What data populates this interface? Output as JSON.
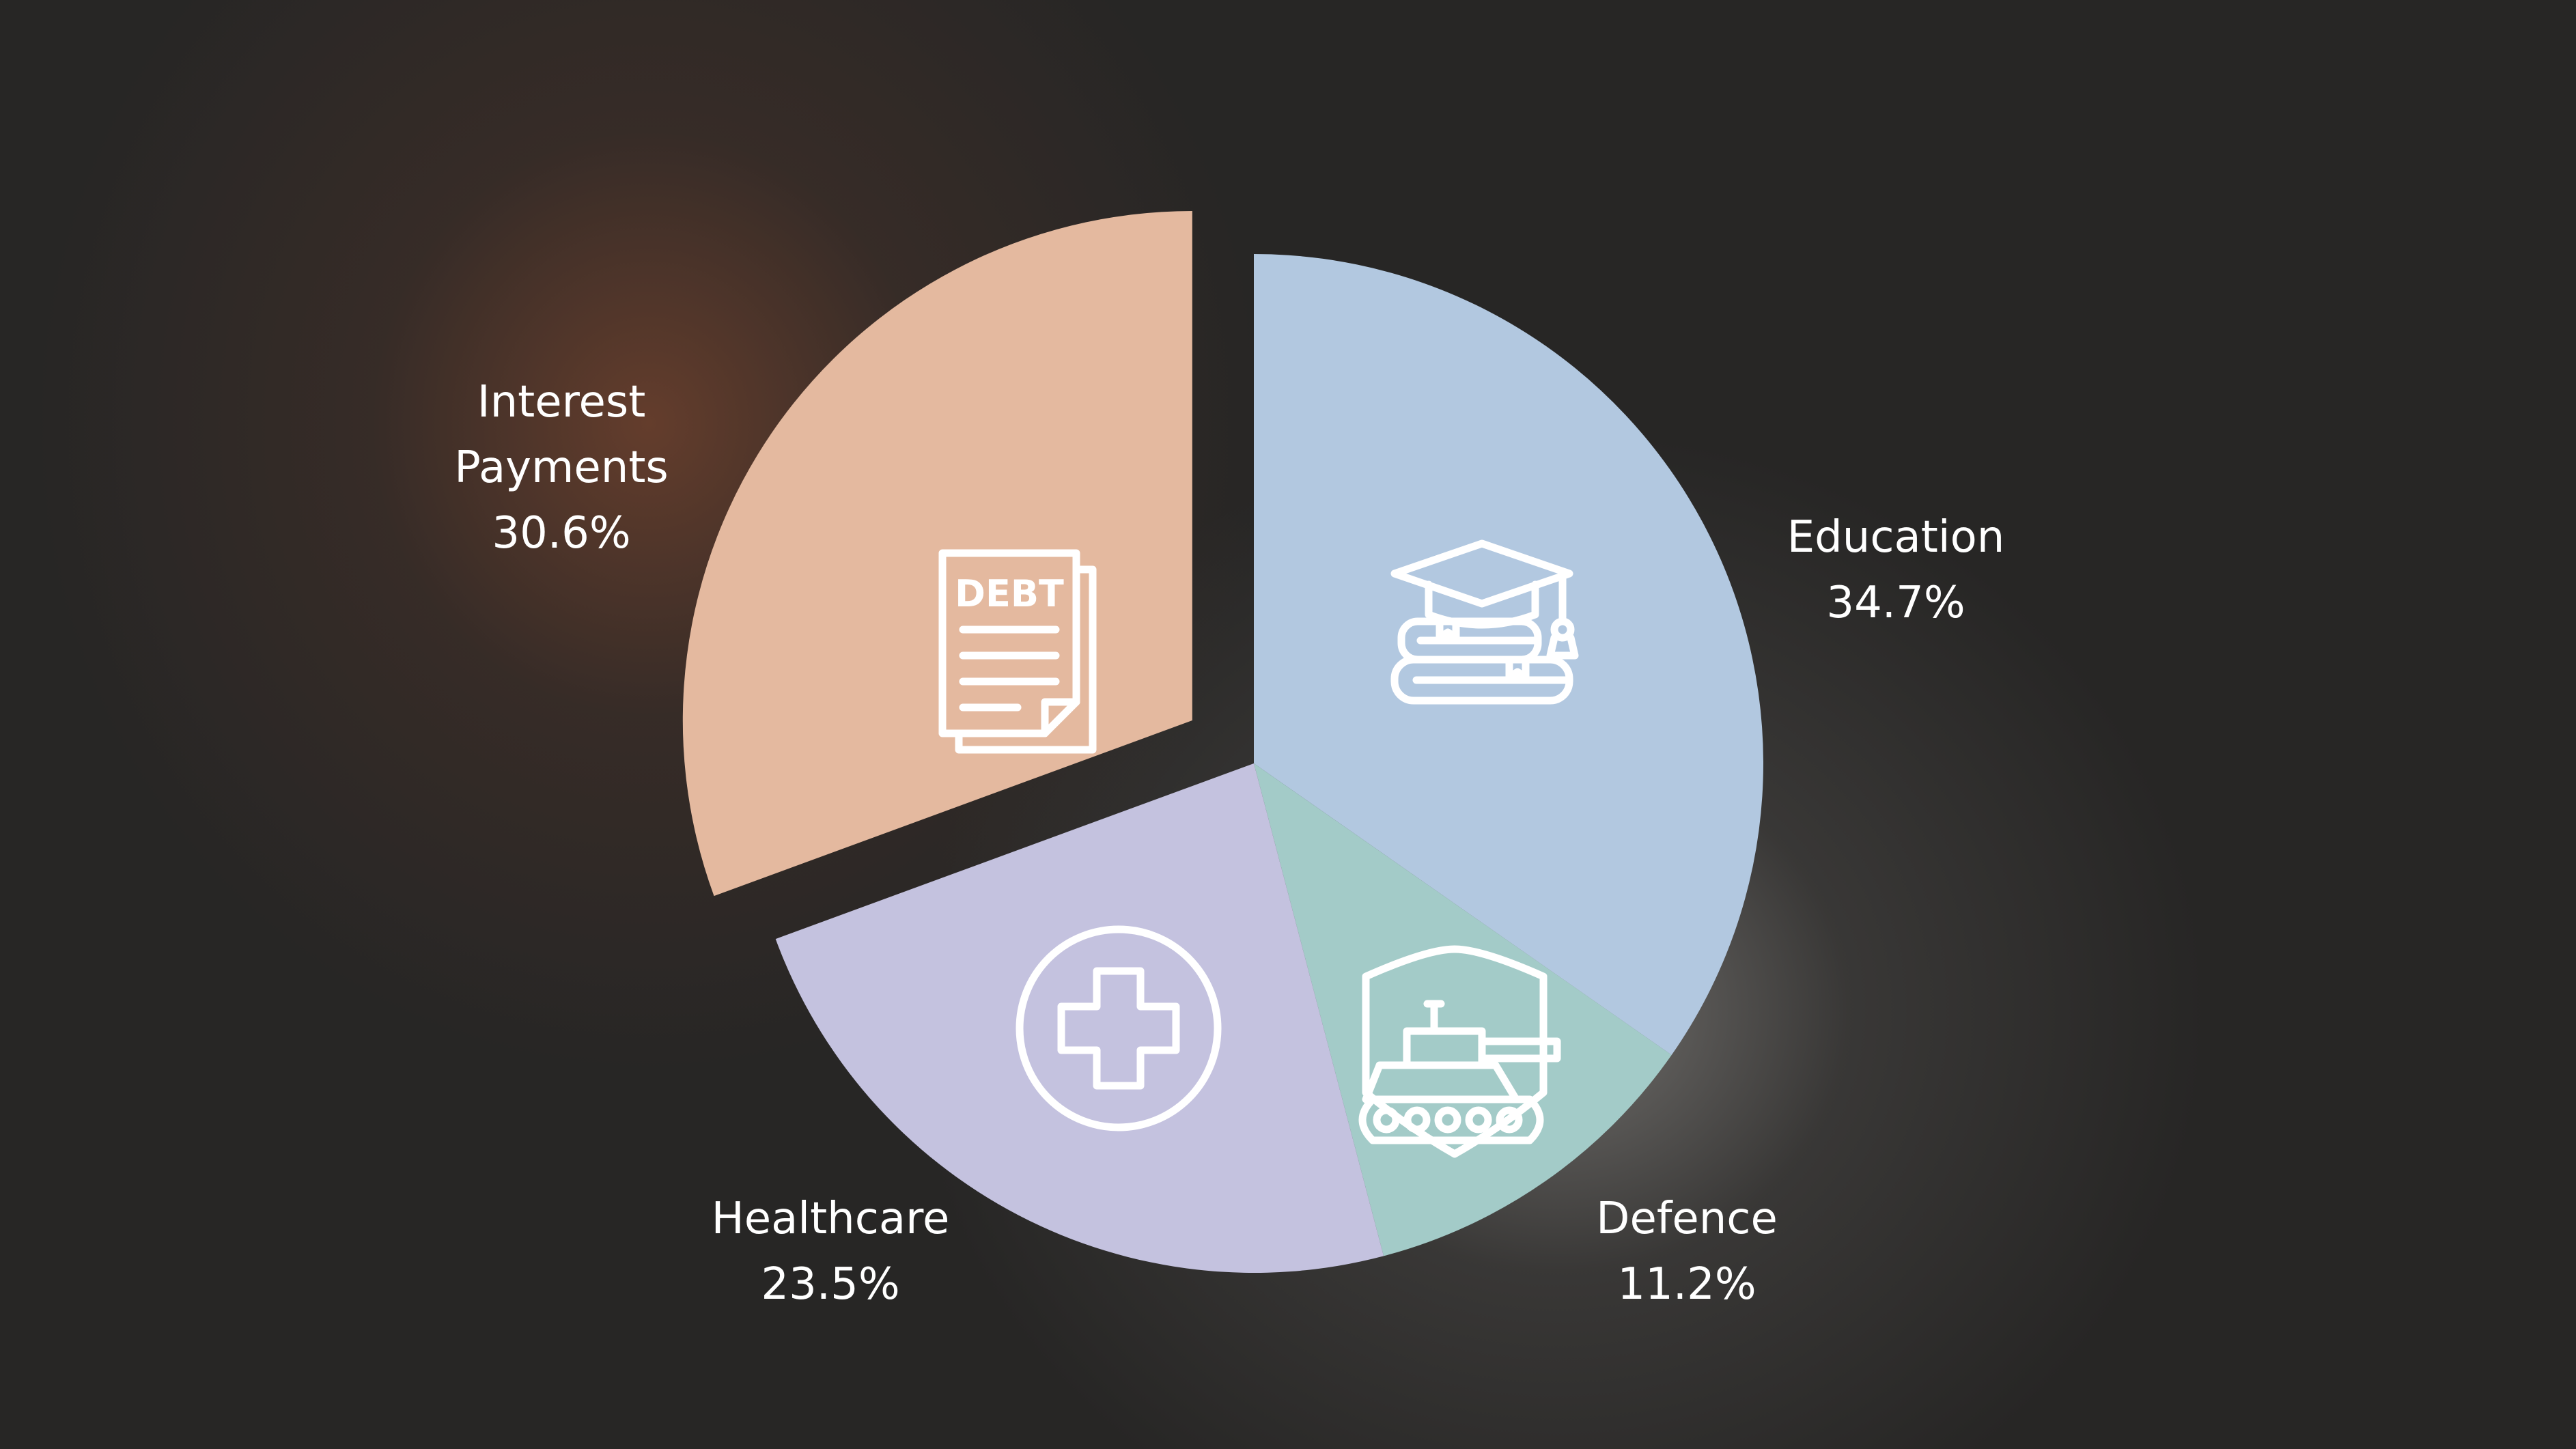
{
  "chart_data": {
    "type": "pie",
    "title": "",
    "slices": [
      {
        "label": "Education",
        "value": 34.7,
        "value_label": "34.7%",
        "color": "#b2c8e0",
        "icon": "graduation-cap-books-icon"
      },
      {
        "label": "Defence",
        "value": 11.2,
        "value_label": "11.2%",
        "color": "#a3cbc8",
        "icon": "tank-shield-icon"
      },
      {
        "label": "Healthcare",
        "value": 23.5,
        "value_label": "23.5%",
        "color": "#c4c2df",
        "icon": "medical-cross-icon"
      },
      {
        "label": "Interest Payments",
        "label_lines": [
          "Interest",
          "Payments"
        ],
        "value": 30.6,
        "value_label": "30.6%",
        "color": "#e4b99f",
        "icon": "debt-document-icon",
        "exploded": true
      }
    ],
    "start_angle": "12 o'clock",
    "direction": "clockwise",
    "legend": "none",
    "debt_icon_text": "DEBT"
  }
}
